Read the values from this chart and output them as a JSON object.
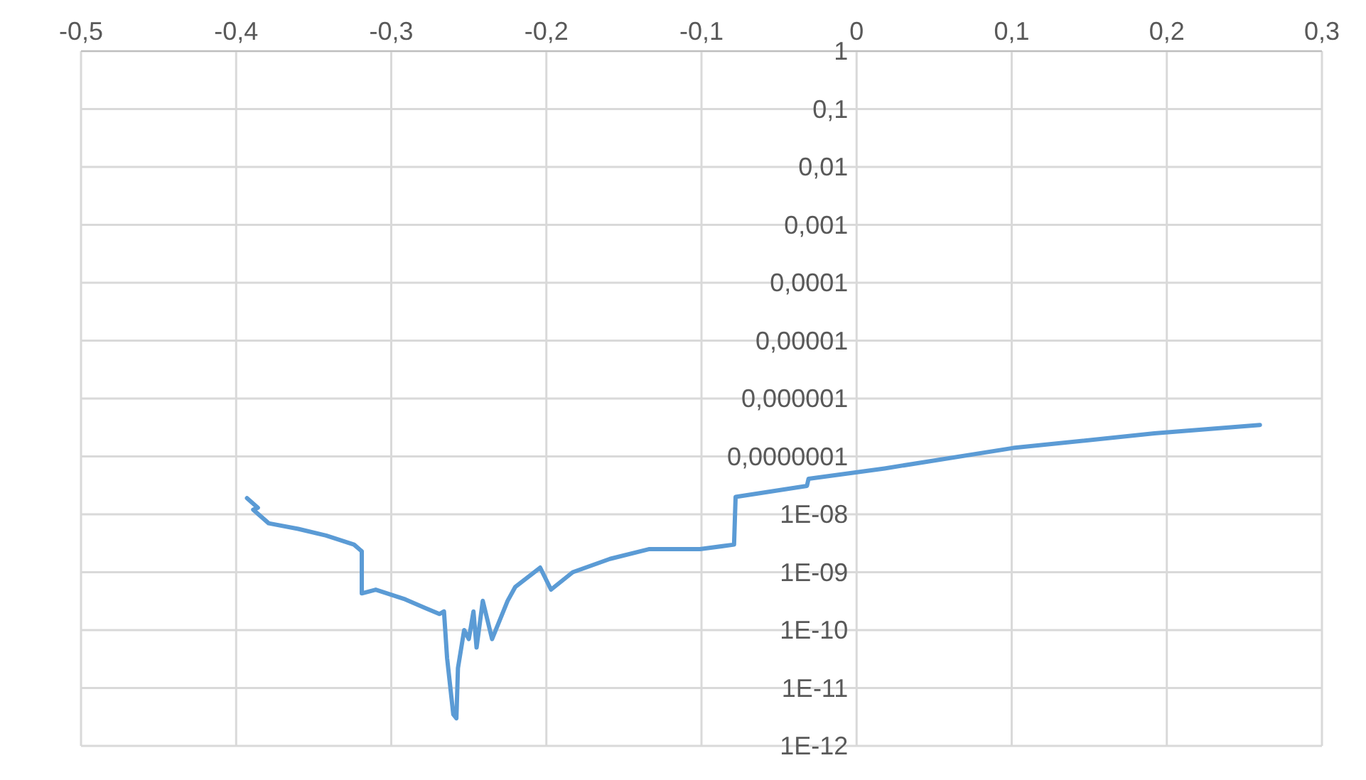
{
  "chart_data": {
    "type": "line",
    "log": "y",
    "grid": true,
    "marker": "none",
    "line_style": "solid",
    "xlim": [
      -0.5,
      0.3
    ],
    "xticks": [
      {
        "value": -0.5,
        "label": "-0,5"
      },
      {
        "value": -0.4,
        "label": "-0,4"
      },
      {
        "value": -0.3,
        "label": "-0,3"
      },
      {
        "value": -0.2,
        "label": "-0,2"
      },
      {
        "value": -0.1,
        "label": "-0,1"
      },
      0,
      {
        "value": 0.1,
        "label": "0,1"
      },
      {
        "value": 0.2,
        "label": "0,2"
      },
      {
        "value": 0.3,
        "label": "0,3"
      }
    ],
    "ylim": [
      1e-12,
      1
    ],
    "yticks": [
      1,
      {
        "value": 0.1,
        "label": "0,1"
      },
      {
        "value": 0.01,
        "label": "0,01"
      },
      {
        "value": 0.001,
        "label": "0,001"
      },
      {
        "value": 0.0001,
        "label": "0,0001"
      },
      {
        "value": 1e-05,
        "label": "0,00001"
      },
      {
        "value": 1e-06,
        "label": "0,000001"
      },
      {
        "value": 1e-07,
        "label": "0,0000001"
      },
      {
        "value": 1e-08,
        "label": "1E-08"
      },
      {
        "value": 1e-09,
        "label": "1E-09"
      },
      {
        "value": 1e-10,
        "label": "1E-10"
      },
      {
        "value": 1e-11,
        "label": "1E-11"
      },
      {
        "value": 1e-12,
        "label": "1E-12"
      }
    ],
    "x": [
      -0.393,
      -0.386,
      -0.389,
      -0.379,
      -0.36,
      -0.342,
      -0.324,
      -0.319,
      -0.319,
      -0.31,
      -0.291,
      -0.278,
      -0.269,
      -0.266,
      -0.264,
      -0.26,
      -0.258,
      -0.257,
      -0.253,
      -0.25,
      -0.247,
      -0.245,
      -0.241,
      -0.235,
      -0.225,
      -0.22,
      -0.204,
      -0.197,
      -0.183,
      -0.159,
      -0.134,
      -0.101,
      -0.079,
      -0.078,
      -0.032,
      -0.031,
      0.018,
      0.101,
      0.192,
      0.26
    ],
    "series": [
      {
        "color": "#5b9bd5",
        "values": [
          1.9e-08,
          1.3e-08,
          1.2e-08,
          7e-09,
          5.6e-09,
          4.3e-09,
          3e-09,
          2.3e-09,
          4.3e-10,
          5e-10,
          3.4e-10,
          2.4e-10,
          1.9e-10,
          2.1e-10,
          3.3e-11,
          3.5e-12,
          3e-12,
          2.2e-11,
          1e-10,
          7e-11,
          2.1e-10,
          5e-11,
          3.2e-10,
          7e-11,
          3.2e-10,
          5.6e-10,
          1.2e-09,
          5e-10,
          1e-09,
          1.7e-09,
          2.5e-09,
          2.5e-09,
          3e-09,
          2e-08,
          3.1e-08,
          4.1e-08,
          6.2e-08,
          1.4e-07,
          2.5e-07,
          3.5e-07
        ]
      }
    ]
  }
}
